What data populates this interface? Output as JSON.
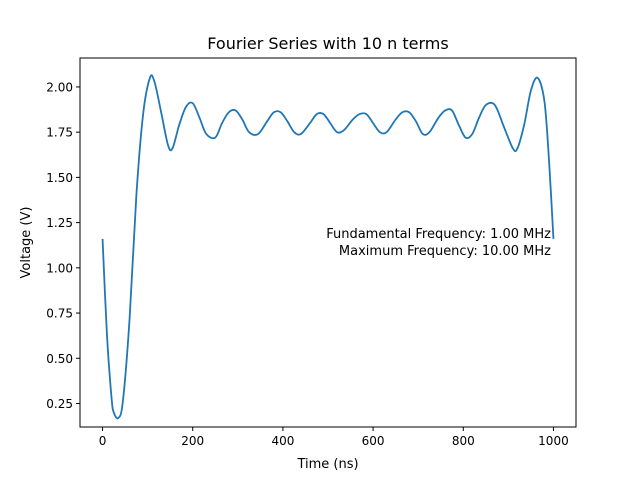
{
  "chart_data": {
    "type": "line",
    "title": "Fourier Series with 10 n terms",
    "xlabel": "Time (ns)",
    "ylabel": "Voltage (V)",
    "xlim": [
      -50,
      1050
    ],
    "ylim": [
      0.12,
      2.16
    ],
    "xticks": [
      0,
      200,
      400,
      600,
      800,
      1000
    ],
    "xtick_labels": [
      "0",
      "200",
      "400",
      "600",
      "800",
      "1000"
    ],
    "yticks": [
      0.25,
      0.5,
      0.75,
      1.0,
      1.25,
      1.5,
      1.75,
      2.0
    ],
    "ytick_labels": [
      "0.25",
      "0.50",
      "0.75",
      "1.00",
      "1.25",
      "1.50",
      "1.75",
      "2.00"
    ],
    "grid": false,
    "series": [
      {
        "name": "Fourier series",
        "color": "#1f77b4",
        "x": [
          0,
          10,
          20,
          25,
          35,
          45,
          60,
          75,
          90,
          105,
          115,
          130,
          145,
          155,
          170,
          185,
          200,
          215,
          230,
          250,
          265,
          280,
          295,
          310,
          325,
          345,
          365,
          380,
          395,
          410,
          425,
          440,
          460,
          475,
          490,
          505,
          520,
          535,
          555,
          570,
          585,
          600,
          615,
          630,
          650,
          665,
          680,
          695,
          710,
          725,
          745,
          760,
          775,
          790,
          805,
          820,
          835,
          850,
          870,
          890,
          910,
          920,
          935,
          950,
          965,
          980,
          990,
          1000
        ],
        "y": [
          1.16,
          0.62,
          0.28,
          0.2,
          0.17,
          0.26,
          0.72,
          1.4,
          1.85,
          2.05,
          2.03,
          1.86,
          1.68,
          1.66,
          1.79,
          1.89,
          1.91,
          1.83,
          1.74,
          1.72,
          1.8,
          1.86,
          1.87,
          1.82,
          1.75,
          1.74,
          1.81,
          1.86,
          1.86,
          1.81,
          1.75,
          1.74,
          1.8,
          1.85,
          1.85,
          1.8,
          1.75,
          1.76,
          1.82,
          1.85,
          1.85,
          1.8,
          1.75,
          1.75,
          1.82,
          1.86,
          1.86,
          1.81,
          1.74,
          1.75,
          1.83,
          1.87,
          1.87,
          1.79,
          1.72,
          1.74,
          1.83,
          1.9,
          1.9,
          1.78,
          1.66,
          1.66,
          1.79,
          1.98,
          2.05,
          1.92,
          1.6,
          1.16
        ]
      }
    ],
    "annotations": [
      "Fundamental Frequency: 1.00 MHz",
      "Maximum Frequency: 10.00 MHz"
    ]
  }
}
